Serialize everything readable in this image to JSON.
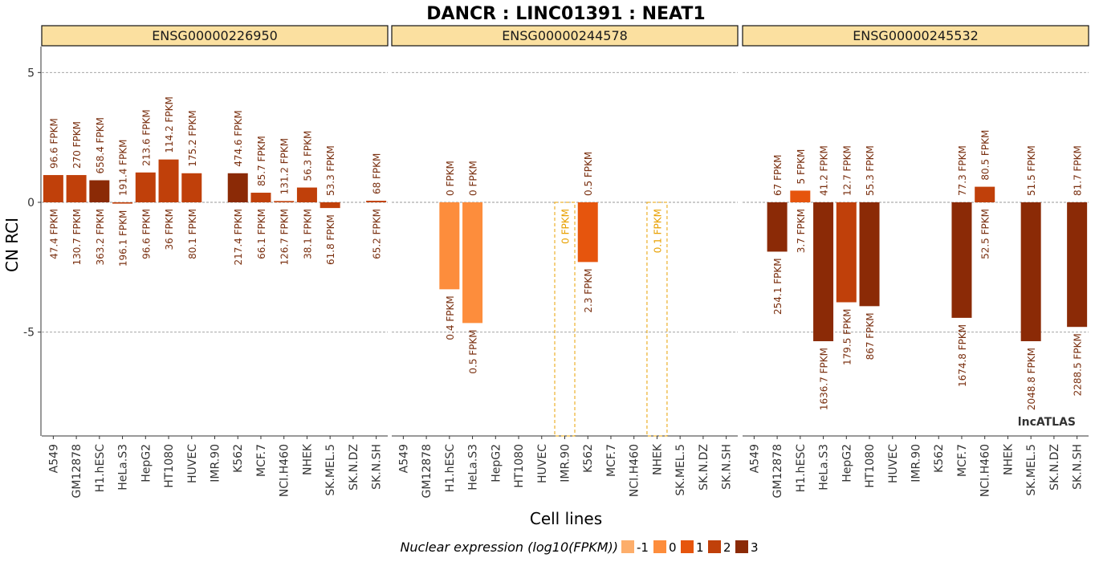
{
  "chart_data": {
    "type": "bar",
    "title": "DANCR : LINC01391 : NEAT1",
    "xlabel": "Cell lines",
    "ylabel": "CN RCI",
    "ylim": [
      -9,
      6
    ],
    "yticks": [
      5,
      0,
      -5
    ],
    "grid": "dashed horizontal at 5, 0, -5",
    "watermark": "lncATLAS",
    "categories": [
      "A549",
      "GM12878",
      "H1.hESC",
      "HeLa.S3",
      "HepG2",
      "HT1080",
      "HUVEC",
      "IMR.90",
      "K562",
      "MCF.7",
      "NCI.H460",
      "NHEK",
      "SK.MEL.5",
      "SK.N.DZ",
      "SK.N.SH"
    ],
    "colors": {
      "-1": "#fdae6b",
      "0": "#fd8d3c",
      "1": "#e6550d",
      "2": "#c0400a",
      "3": "#8b2a06",
      "missing": "#e8a000",
      "ann": "#7a3010",
      "strip": "#fbe0a0"
    },
    "legend": {
      "title": "Nuclear expression (log10(FPKM))",
      "position": "bottom",
      "levels": [
        {
          "label": "-1",
          "color": "#fdae6b"
        },
        {
          "label": "0",
          "color": "#fd8d3c"
        },
        {
          "label": "1",
          "color": "#e6550d"
        },
        {
          "label": "2",
          "color": "#c0400a"
        },
        {
          "label": "3",
          "color": "#8b2a06"
        }
      ]
    },
    "panels": [
      {
        "name": "ENSG00000226950",
        "bars": [
          {
            "cell": "A549",
            "value": 1.05,
            "level": 2,
            "top": "96.6 FPKM",
            "bottom": "47.4 FPKM"
          },
          {
            "cell": "GM12878",
            "value": 1.05,
            "level": 2,
            "top": "270 FPKM",
            "bottom": "130.7 FPKM"
          },
          {
            "cell": "H1.hESC",
            "value": 0.85,
            "level": 3,
            "top": "658.4 FPKM",
            "bottom": "363.2 FPKM"
          },
          {
            "cell": "HeLa.S3",
            "value": -0.05,
            "level": 2,
            "top": "191.4 FPKM",
            "bottom": "196.1 FPKM"
          },
          {
            "cell": "HepG2",
            "value": 1.15,
            "level": 2,
            "top": "213.6 FPKM",
            "bottom": "96.6 FPKM"
          },
          {
            "cell": "HT1080",
            "value": 1.65,
            "level": 2,
            "top": "114.2 FPKM",
            "bottom": "36 FPKM"
          },
          {
            "cell": "HUVEC",
            "value": 1.12,
            "level": 2,
            "top": "175.2 FPKM",
            "bottom": "80.1 FPKM"
          },
          {
            "cell": "K562",
            "value": 1.12,
            "level": 3,
            "top": "474.6 FPKM",
            "bottom": "217.4 FPKM"
          },
          {
            "cell": "MCF.7",
            "value": 0.37,
            "level": 2,
            "top": "85.7 FPKM",
            "bottom": "66.1 FPKM"
          },
          {
            "cell": "NCI.H460",
            "value": 0.05,
            "level": 2,
            "top": "131.2 FPKM",
            "bottom": "126.7 FPKM"
          },
          {
            "cell": "NHEK",
            "value": 0.57,
            "level": 2,
            "top": "56.3 FPKM",
            "bottom": "38.1 FPKM"
          },
          {
            "cell": "SK.MEL.5",
            "value": -0.22,
            "level": 2,
            "top": "53.3 FPKM",
            "bottom": "61.8 FPKM"
          },
          {
            "cell": "SK.N.SH",
            "value": 0.06,
            "level": 2,
            "top": "68 FPKM",
            "bottom": "65.2 FPKM"
          }
        ],
        "missing": []
      },
      {
        "name": "ENSG00000244578",
        "bars": [
          {
            "cell": "H1.hESC",
            "value": -3.35,
            "level": 0,
            "top": "0 FPKM",
            "bottom": "0.4 FPKM"
          },
          {
            "cell": "HeLa.S3",
            "value": -4.65,
            "level": 0,
            "top": "0 FPKM",
            "bottom": "0.5 FPKM"
          },
          {
            "cell": "K562",
            "value": -2.3,
            "level": 1,
            "top": "0.5 FPKM",
            "bottom": "2.3 FPKM"
          }
        ],
        "missing": [
          {
            "cell": "IMR.90",
            "label": "0 FPKM"
          },
          {
            "cell": "NHEK",
            "label": "0.1 FPKM"
          }
        ]
      },
      {
        "name": "ENSG00000245532",
        "bars": [
          {
            "cell": "GM12878",
            "value": -1.9,
            "level": 3,
            "top": "67 FPKM",
            "bottom": "254.1 FPKM"
          },
          {
            "cell": "H1.hESC",
            "value": 0.45,
            "level": 1,
            "top": "5 FPKM",
            "bottom": "3.7 FPKM"
          },
          {
            "cell": "HeLa.S3",
            "value": -5.35,
            "level": 3,
            "top": "41.2 FPKM",
            "bottom": "1636.7 FPKM"
          },
          {
            "cell": "HepG2",
            "value": -3.85,
            "level": 2,
            "top": "12.7 FPKM",
            "bottom": "179.5 FPKM"
          },
          {
            "cell": "HT1080",
            "value": -4.0,
            "level": 3,
            "top": "55.3 FPKM",
            "bottom": "867 FPKM"
          },
          {
            "cell": "MCF.7",
            "value": -4.45,
            "level": 3,
            "top": "77.3 FPKM",
            "bottom": "1674.8 FPKM"
          },
          {
            "cell": "NCI.H460",
            "value": 0.6,
            "level": 2,
            "top": "80.5 FPKM",
            "bottom": "52.5 FPKM"
          },
          {
            "cell": "SK.MEL.5",
            "value": -5.35,
            "level": 3,
            "top": "51.5 FPKM",
            "bottom": "2048.8 FPKM"
          },
          {
            "cell": "SK.N.SH",
            "value": -4.8,
            "level": 3,
            "top": "81.7 FPKM",
            "bottom": "2288.5 FPKM"
          }
        ],
        "missing": []
      }
    ]
  }
}
